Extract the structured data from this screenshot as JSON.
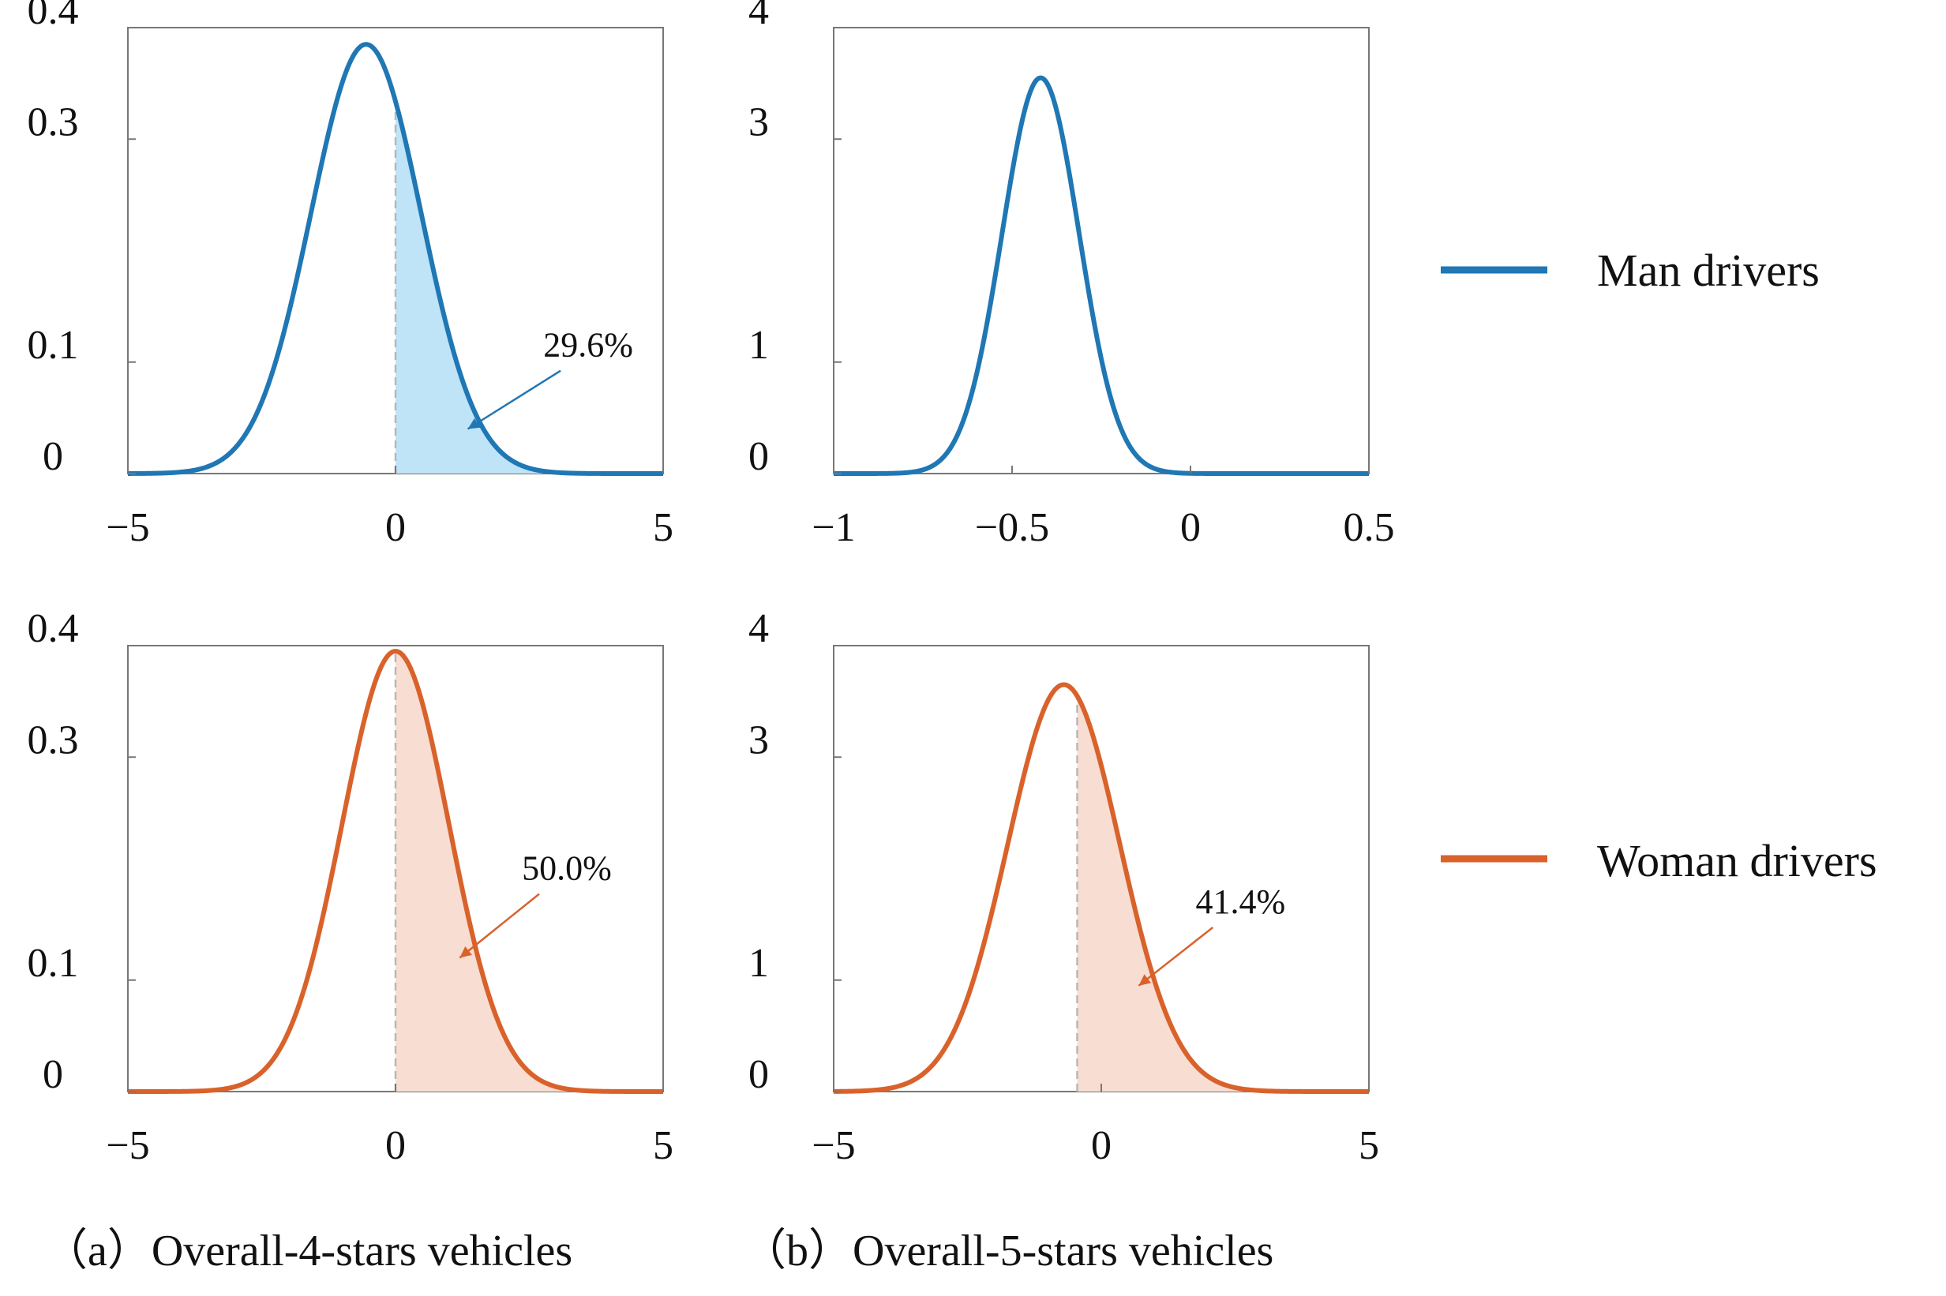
{
  "colors": {
    "man": "#1f77b4",
    "man_fill": "#bfe3f7",
    "woman": "#d9622b",
    "woman_fill": "#f8ddd3",
    "axis": "#777777",
    "divider": "#b8b8b8"
  },
  "legend": {
    "placement": "right",
    "items": [
      {
        "label": "Man drivers",
        "color": "#1f77b4"
      },
      {
        "label": "Woman drivers",
        "color": "#d9622b"
      }
    ]
  },
  "captions": {
    "a": "（a）Overall-4-stars  vehicles",
    "b": "（b）Overall-5-stars  vehicles"
  },
  "chart_data": [
    {
      "id": "a-man",
      "type": "line",
      "series_color": "#1f77b4",
      "xlim": [
        -5,
        5
      ],
      "ylim": [
        0,
        0.4
      ],
      "xticks": [
        -5,
        0,
        5
      ],
      "xtick_labels": [
        "−5",
        "0",
        "5"
      ],
      "yticks": [
        0,
        0.1,
        0.3,
        0.4
      ],
      "ytick_labels": [
        "0",
        "0.1",
        "0.3",
        "0.4"
      ],
      "curve": {
        "distribution": "normal",
        "mean": -0.55,
        "sd": 1.03,
        "peak": 0.385
      },
      "shade_from": 0,
      "divider_x": 0,
      "annotation": {
        "text": "29.6%",
        "x": 3.6,
        "y": 0.105,
        "target_x": 1.35,
        "target_y": 0.04
      },
      "grid": false
    },
    {
      "id": "b-man",
      "type": "line",
      "series_color": "#1f77b4",
      "xlim": [
        -1,
        0.5
      ],
      "ylim": [
        0,
        4
      ],
      "xticks": [
        -1,
        -0.5,
        0,
        0.5
      ],
      "xtick_labels": [
        "−1",
        "−0.5",
        "0",
        "0.5"
      ],
      "yticks": [
        0,
        1,
        3,
        4
      ],
      "ytick_labels": [
        "0",
        "1",
        "3",
        "4"
      ],
      "curve": {
        "distribution": "normal",
        "mean": -0.42,
        "sd": 0.108,
        "peak": 3.55
      },
      "grid": false
    },
    {
      "id": "a-woman",
      "type": "line",
      "series_color": "#d9622b",
      "xlim": [
        -5,
        5
      ],
      "ylim": [
        0,
        0.4
      ],
      "xticks": [
        -5,
        0,
        5
      ],
      "xtick_labels": [
        "−5",
        "0",
        "5"
      ],
      "yticks": [
        0,
        0.1,
        0.3,
        0.4
      ],
      "ytick_labels": [
        "0",
        "0.1",
        "0.3",
        "0.4"
      ],
      "curve": {
        "distribution": "normal",
        "mean": 0.0,
        "sd": 1.0,
        "peak": 0.395
      },
      "shade_from": 0,
      "divider_x": 0,
      "annotation": {
        "text": "50.0%",
        "x": 3.2,
        "y": 0.19,
        "target_x": 1.2,
        "target_y": 0.12
      },
      "grid": false
    },
    {
      "id": "b-woman",
      "type": "line",
      "series_color": "#d9622b",
      "xlim": [
        -5,
        5
      ],
      "ylim": [
        0,
        4
      ],
      "xticks": [
        -5,
        0,
        5
      ],
      "xtick_labels": [
        "−5",
        "0",
        "5"
      ],
      "yticks": [
        0,
        1,
        3,
        4
      ],
      "ytick_labels": [
        "0",
        "1",
        "3",
        "4"
      ],
      "curve": {
        "distribution": "normal",
        "mean": -0.7,
        "sd": 1.05,
        "peak": 3.65
      },
      "shade_from": -0.45,
      "divider_x": -0.45,
      "annotation": {
        "text": "41.4%",
        "x": 2.6,
        "y": 1.6,
        "target_x": 0.7,
        "target_y": 0.95
      },
      "grid": false
    }
  ]
}
